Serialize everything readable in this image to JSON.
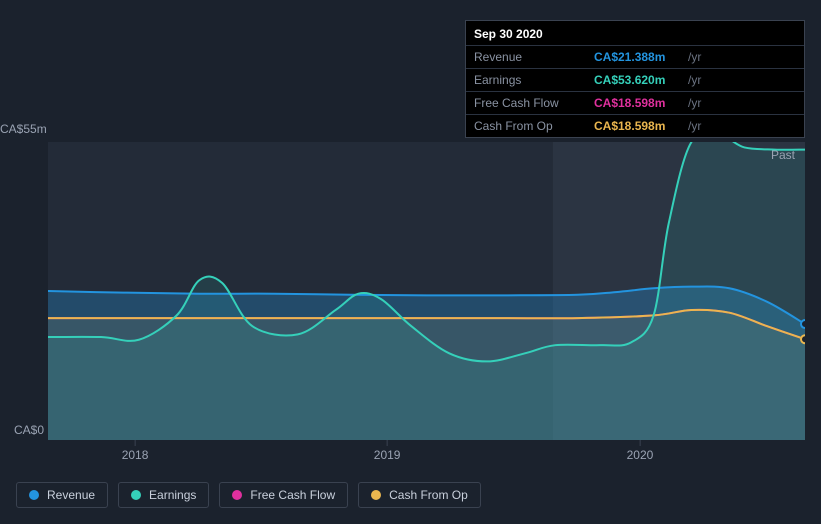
{
  "chart": {
    "type": "area",
    "background_color": "#1b222d",
    "plot_background_color": "#232b38",
    "past_label": "Past",
    "y_axis": {
      "min_label": "CA$0",
      "max_label": "CA$55m",
      "min": 0,
      "max": 55,
      "label_color": "#9aa3b3",
      "label_fontsize": 12
    },
    "x_axis": {
      "ticks": [
        {
          "label": "2018",
          "pos": 0.115
        },
        {
          "label": "2019",
          "pos": 0.448
        },
        {
          "label": "2020",
          "pos": 0.782
        }
      ],
      "label_color": "#9aa3b3",
      "label_fontsize": 12
    },
    "highlight": {
      "from": 0.667,
      "to": 1.0,
      "fill": "#2b3442"
    },
    "series": {
      "revenue": {
        "label": "Revenue",
        "color": "#2394df",
        "fill": "#2394df",
        "fill_opacity": 0.3,
        "line_width": 2,
        "points": [
          [
            0,
            27.5
          ],
          [
            0.1,
            27.2
          ],
          [
            0.2,
            27
          ],
          [
            0.3,
            27
          ],
          [
            0.4,
            26.8
          ],
          [
            0.5,
            26.7
          ],
          [
            0.6,
            26.7
          ],
          [
            0.7,
            26.8
          ],
          [
            0.75,
            27.3
          ],
          [
            0.8,
            28
          ],
          [
            0.85,
            28.3
          ],
          [
            0.9,
            28
          ],
          [
            0.95,
            25.5
          ],
          [
            1.0,
            21.4
          ]
        ]
      },
      "earnings": {
        "label": "Earnings",
        "color": "#35d0ba",
        "fill": "#35d0ba",
        "fill_opacity": 0.12,
        "line_width": 2,
        "points": [
          [
            0,
            19
          ],
          [
            0.07,
            19
          ],
          [
            0.12,
            18.5
          ],
          [
            0.17,
            23
          ],
          [
            0.2,
            29.5
          ],
          [
            0.23,
            29
          ],
          [
            0.27,
            21
          ],
          [
            0.33,
            19.5
          ],
          [
            0.38,
            24
          ],
          [
            0.41,
            27
          ],
          [
            0.44,
            26
          ],
          [
            0.48,
            21
          ],
          [
            0.53,
            16
          ],
          [
            0.58,
            14.5
          ],
          [
            0.63,
            16
          ],
          [
            0.67,
            17.5
          ],
          [
            0.73,
            17.5
          ],
          [
            0.77,
            18
          ],
          [
            0.8,
            23
          ],
          [
            0.82,
            40
          ],
          [
            0.85,
            55
          ],
          [
            0.89,
            56
          ],
          [
            0.92,
            54
          ],
          [
            0.96,
            53.6
          ],
          [
            1.0,
            53.6
          ]
        ]
      },
      "free_cash_flow": {
        "label": "Free Cash Flow",
        "color": "#e0309e",
        "fill": "#e0309e",
        "fill_opacity": 0.0,
        "line_width": 2,
        "points": [
          [
            0,
            22.5
          ],
          [
            0.1,
            22.5
          ],
          [
            0.2,
            22.5
          ],
          [
            0.3,
            22.5
          ],
          [
            0.4,
            22.5
          ],
          [
            0.5,
            22.5
          ],
          [
            0.6,
            22.5
          ],
          [
            0.7,
            22.5
          ],
          [
            0.8,
            23
          ],
          [
            0.85,
            24
          ],
          [
            0.9,
            23.5
          ],
          [
            0.95,
            21
          ],
          [
            1.0,
            18.6
          ]
        ]
      },
      "cash_from_op": {
        "label": "Cash From Op",
        "color": "#eab64f",
        "fill": "#eab64f",
        "fill_opacity": 0.1,
        "line_width": 2,
        "points": [
          [
            0,
            22.5
          ],
          [
            0.1,
            22.5
          ],
          [
            0.2,
            22.5
          ],
          [
            0.3,
            22.5
          ],
          [
            0.4,
            22.5
          ],
          [
            0.5,
            22.5
          ],
          [
            0.6,
            22.5
          ],
          [
            0.7,
            22.5
          ],
          [
            0.8,
            23
          ],
          [
            0.85,
            24
          ],
          [
            0.9,
            23.5
          ],
          [
            0.95,
            21
          ],
          [
            1.0,
            18.6
          ]
        ]
      }
    },
    "end_marker_color": "#8a93a3"
  },
  "tooltip": {
    "title": "Sep 30 2020",
    "unit": "/yr",
    "rows": [
      {
        "label": "Revenue",
        "value": "CA$21.388m",
        "color": "#2394df"
      },
      {
        "label": "Earnings",
        "value": "CA$53.620m",
        "color": "#35d0ba"
      },
      {
        "label": "Free Cash Flow",
        "value": "CA$18.598m",
        "color": "#e0309e"
      },
      {
        "label": "Cash From Op",
        "value": "CA$18.598m",
        "color": "#eab64f"
      }
    ]
  },
  "legend": {
    "items": [
      {
        "label": "Revenue",
        "color": "#2394df"
      },
      {
        "label": "Earnings",
        "color": "#35d0ba"
      },
      {
        "label": "Free Cash Flow",
        "color": "#e0309e"
      },
      {
        "label": "Cash From Op",
        "color": "#eab64f"
      }
    ],
    "border_color": "#3a4250",
    "text_color": "#c9d0dc",
    "fontsize": 12
  }
}
